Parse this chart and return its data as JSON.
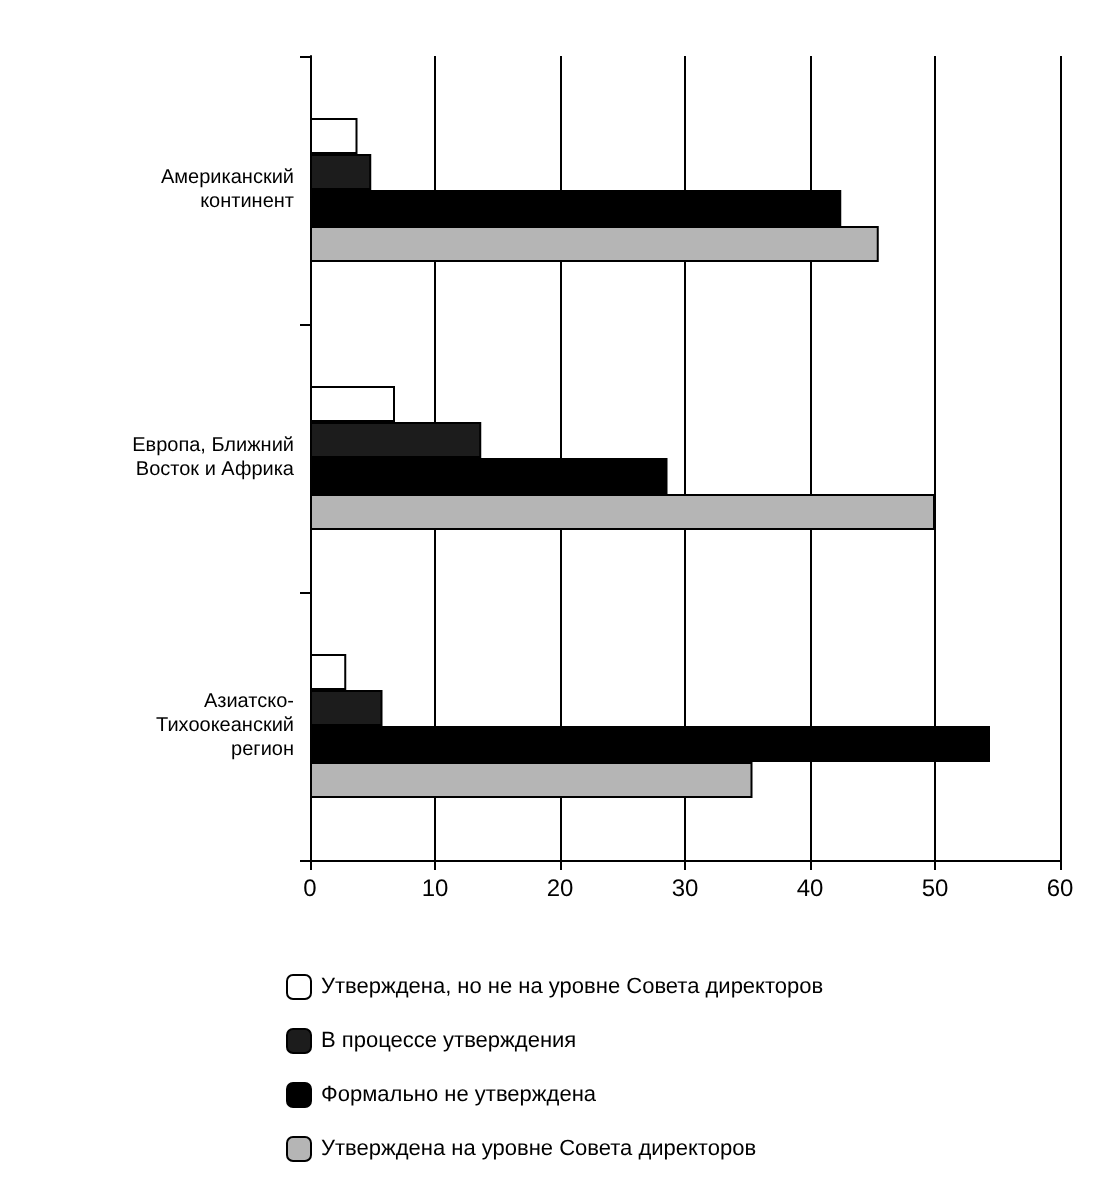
{
  "chart_data": {
    "type": "bar",
    "orientation": "horizontal",
    "categories": [
      "Американский\nконтинент",
      "Европа, Ближний\nВосток и Африка",
      "Азиатско-\nТихоокеанский\nрегион"
    ],
    "series": [
      {
        "name": "Утверждена, но не на уровне Совета директоров",
        "color": "#ffffff",
        "values": [
          3.8,
          6.8,
          2.9
        ]
      },
      {
        "name": "В процессе утверждения",
        "color": "#1c1c1c",
        "values": [
          4.9,
          13.7,
          5.8
        ]
      },
      {
        "name": "Формально не утверждена",
        "color": "#000000",
        "values": [
          42.5,
          28.6,
          54.4
        ]
      },
      {
        "name": "Утверждена на уровне Совета директоров",
        "color": "#b5b5b5",
        "values": [
          45.5,
          50,
          35.4
        ]
      }
    ],
    "xlim": [
      0,
      60
    ],
    "xticks": [
      0,
      10,
      20,
      30,
      40,
      50,
      60
    ],
    "grid": "x",
    "legend": "bottom"
  }
}
